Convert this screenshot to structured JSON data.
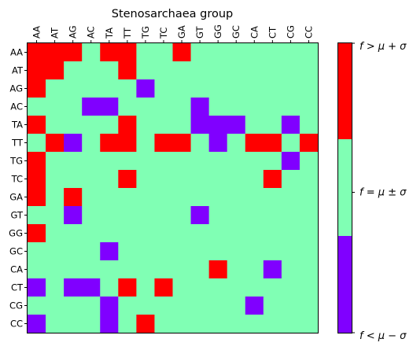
{
  "chart_data": {
    "type": "heatmap",
    "title": "Stenosarchaea group",
    "x_labels": [
      "AA",
      "AT",
      "AG",
      "AC",
      "TA",
      "TT",
      "TG",
      "TC",
      "GA",
      "GT",
      "GG",
      "GC",
      "CA",
      "CT",
      "CG",
      "CC"
    ],
    "y_labels": [
      "AA",
      "AT",
      "AG",
      "AC",
      "TA",
      "TT",
      "TG",
      "TC",
      "GA",
      "GT",
      "GG",
      "GC",
      "CA",
      "CT",
      "CG",
      "CC"
    ],
    "value_legend": {
      "1": "high",
      "0": "normal",
      "-1": "low"
    },
    "matrix": [
      [
        1,
        1,
        1,
        0,
        1,
        1,
        0,
        0,
        1,
        0,
        0,
        0,
        0,
        0,
        0,
        0
      ],
      [
        1,
        1,
        0,
        0,
        0,
        1,
        0,
        0,
        0,
        0,
        0,
        0,
        0,
        0,
        0,
        0
      ],
      [
        1,
        0,
        0,
        0,
        0,
        0,
        -1,
        0,
        0,
        0,
        0,
        0,
        0,
        0,
        0,
        0
      ],
      [
        0,
        0,
        0,
        -1,
        -1,
        0,
        0,
        0,
        0,
        -1,
        0,
        0,
        0,
        0,
        0,
        0
      ],
      [
        1,
        0,
        0,
        0,
        0,
        1,
        0,
        0,
        0,
        -1,
        -1,
        -1,
        0,
        0,
        -1,
        0
      ],
      [
        0,
        1,
        -1,
        0,
        1,
        1,
        0,
        1,
        1,
        0,
        -1,
        0,
        1,
        1,
        0,
        1
      ],
      [
        1,
        0,
        0,
        0,
        0,
        0,
        0,
        0,
        0,
        0,
        0,
        0,
        0,
        0,
        -1,
        0
      ],
      [
        1,
        0,
        0,
        0,
        0,
        1,
        0,
        0,
        0,
        0,
        0,
        0,
        0,
        1,
        0,
        0
      ],
      [
        1,
        0,
        1,
        0,
        0,
        0,
        0,
        0,
        0,
        0,
        0,
        0,
        0,
        0,
        0,
        0
      ],
      [
        0,
        0,
        -1,
        0,
        0,
        0,
        0,
        0,
        0,
        -1,
        0,
        0,
        0,
        0,
        0,
        0
      ],
      [
        1,
        0,
        0,
        0,
        0,
        0,
        0,
        0,
        0,
        0,
        0,
        0,
        0,
        0,
        0,
        0
      ],
      [
        0,
        0,
        0,
        0,
        -1,
        0,
        0,
        0,
        0,
        0,
        0,
        0,
        0,
        0,
        0,
        0
      ],
      [
        0,
        0,
        0,
        0,
        0,
        0,
        0,
        0,
        0,
        0,
        1,
        0,
        0,
        -1,
        0,
        0
      ],
      [
        -1,
        0,
        -1,
        -1,
        0,
        1,
        0,
        1,
        0,
        0,
        0,
        0,
        0,
        0,
        0,
        0
      ],
      [
        0,
        0,
        0,
        0,
        -1,
        0,
        0,
        0,
        0,
        0,
        0,
        0,
        -1,
        0,
        0,
        0
      ],
      [
        -1,
        0,
        0,
        0,
        -1,
        0,
        1,
        0,
        0,
        0,
        0,
        0,
        0,
        0,
        0,
        0
      ]
    ],
    "colors": {
      "high": "#ff0000",
      "normal": "#80ffb4",
      "low": "#8000ff"
    },
    "colorbar": {
      "high_label": "f > μ + σ",
      "normal_label": "f = μ ± σ",
      "low_label": "f < μ − σ"
    },
    "grid": false
  }
}
